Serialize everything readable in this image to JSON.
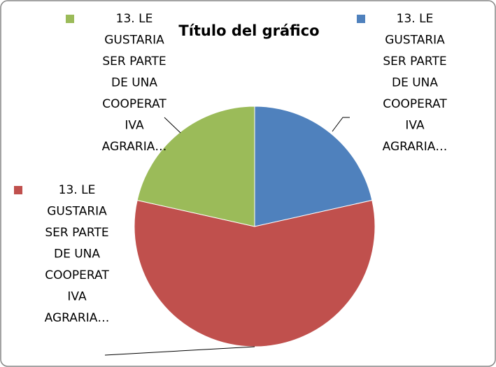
{
  "chart_data": {
    "type": "pie",
    "title": "Título del gráfico",
    "categories": [
      "13. LE GUSTARIA SER PARTE DE UNA COOPERATIVA AGRARIA…",
      "13. LE GUSTARIA SER PARTE DE UNA COOPERATIVA AGRARIA…",
      "13. LE GUSTARIA SER PARTE DE UNA COOPERATIVA AGRARIA…"
    ],
    "values": [
      21.5,
      57,
      21.5
    ],
    "colors": [
      "#4f81bd",
      "#c0504d",
      "#9bbb59"
    ]
  }
}
